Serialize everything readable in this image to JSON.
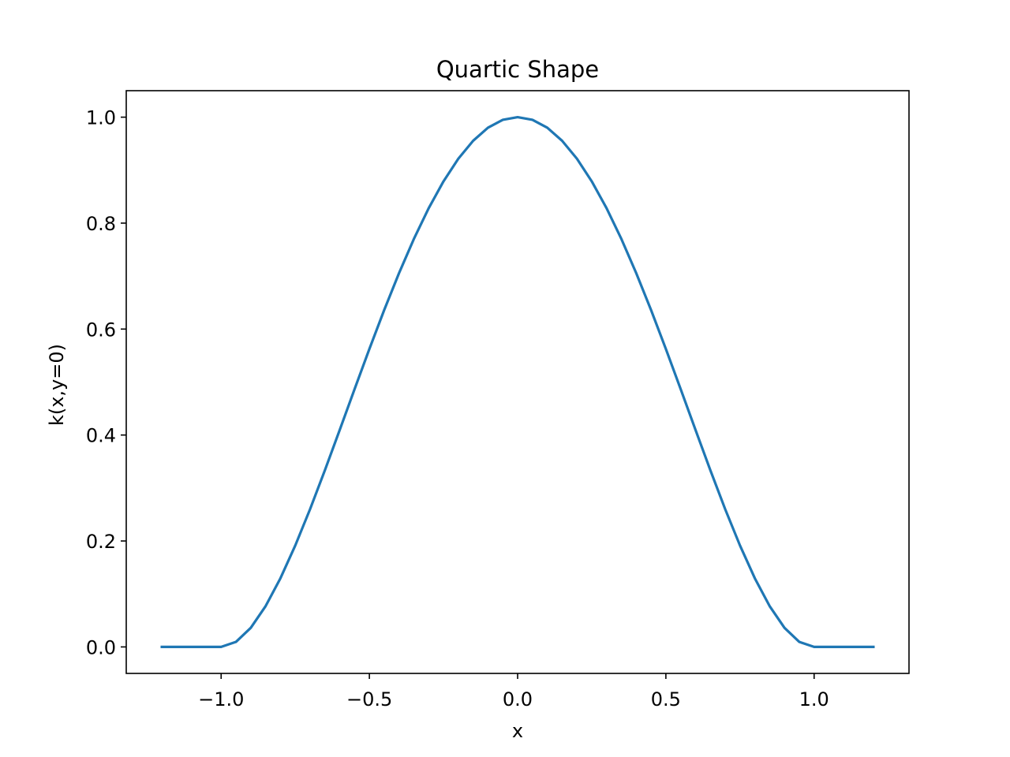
{
  "chart_data": {
    "type": "line",
    "title": "Quartic Shape",
    "xlabel": "x",
    "ylabel": "k(x,y=0)",
    "xlim": [
      -1.32,
      1.32
    ],
    "ylim": [
      -0.05,
      1.05
    ],
    "xticks": [
      -1.0,
      -0.5,
      0.0,
      0.5,
      1.0
    ],
    "xtick_labels": [
      "−1.0",
      "−0.5",
      "0.0",
      "0.5",
      "1.0"
    ],
    "yticks": [
      0.0,
      0.2,
      0.4,
      0.6,
      0.8,
      1.0
    ],
    "ytick_labels": [
      "0.0",
      "0.2",
      "0.4",
      "0.6",
      "0.8",
      "1.0"
    ],
    "grid": false,
    "series": [
      {
        "color": "#1f77b4",
        "x": [
          -1.2,
          -1.1,
          -1.0,
          -0.95,
          -0.9,
          -0.85,
          -0.8,
          -0.75,
          -0.7,
          -0.65,
          -0.6,
          -0.55,
          -0.5,
          -0.45,
          -0.4,
          -0.35,
          -0.3,
          -0.25,
          -0.2,
          -0.15,
          -0.1,
          -0.05,
          0.0,
          0.05,
          0.1,
          0.15,
          0.2,
          0.25,
          0.3,
          0.35,
          0.4,
          0.45,
          0.5,
          0.55,
          0.6,
          0.65,
          0.7,
          0.75,
          0.8,
          0.85,
          0.9,
          0.95,
          1.0,
          1.1,
          1.2
        ],
        "y": [
          0.0,
          0.0,
          0.0,
          0.0095,
          0.0361,
          0.077,
          0.1296,
          0.1914,
          0.2601,
          0.3335,
          0.4096,
          0.4865,
          0.5625,
          0.636,
          0.7056,
          0.77,
          0.8281,
          0.8789,
          0.9216,
          0.9555,
          0.9801,
          0.995,
          1.0,
          0.995,
          0.9801,
          0.9555,
          0.9216,
          0.8789,
          0.8281,
          0.77,
          0.7056,
          0.636,
          0.5625,
          0.4865,
          0.4096,
          0.3335,
          0.2601,
          0.1914,
          0.1296,
          0.077,
          0.0361,
          0.0095,
          0.0,
          0.0,
          0.0
        ]
      }
    ]
  }
}
